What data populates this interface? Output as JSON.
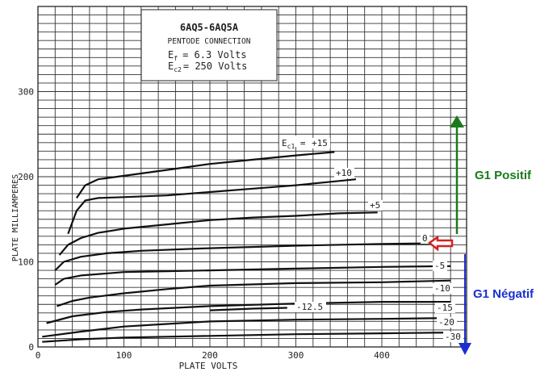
{
  "chart_data": {
    "type": "line",
    "title": {
      "line1": "6AQ5-6AQ5A",
      "line2": "PENTODE CONNECTION",
      "line3_sym": "E",
      "line3_sub": "f",
      "line3_rest": "= 6.3 Volts",
      "line4_sym": "E",
      "line4_sub": "c2",
      "line4_rest": "= 250 Volts"
    },
    "xlabel": "PLATE VOLTS",
    "ylabel": "PLATE MILLIAMPERES",
    "xlim": [
      0,
      480
    ],
    "ylim": [
      0,
      300
    ],
    "x_ticks": [
      "0",
      "100",
      "200",
      "300",
      "400"
    ],
    "y_ticks": [
      "0",
      "100",
      "200",
      "300"
    ],
    "grid": true,
    "series_label_prefix_sym": "E",
    "series_label_prefix_sub": "c1",
    "series": [
      {
        "name": "+15",
        "points": [
          [
            45,
            175
          ],
          [
            55,
            190
          ],
          [
            70,
            197
          ],
          [
            100,
            201
          ],
          [
            150,
            208
          ],
          [
            200,
            215
          ],
          [
            250,
            220
          ],
          [
            300,
            225
          ],
          [
            345,
            229
          ]
        ]
      },
      {
        "name": "+10",
        "points": [
          [
            35,
            133
          ],
          [
            45,
            160
          ],
          [
            55,
            172
          ],
          [
            70,
            175
          ],
          [
            100,
            176
          ],
          [
            150,
            178
          ],
          [
            200,
            182
          ],
          [
            250,
            186
          ],
          [
            300,
            190
          ],
          [
            350,
            195
          ],
          [
            370,
            197
          ]
        ]
      },
      {
        "name": "+5",
        "points": [
          [
            25,
            108
          ],
          [
            35,
            120
          ],
          [
            50,
            128
          ],
          [
            70,
            134
          ],
          [
            100,
            139
          ],
          [
            150,
            144
          ],
          [
            200,
            149
          ],
          [
            250,
            152
          ],
          [
            300,
            154
          ],
          [
            350,
            157
          ],
          [
            395,
            158
          ]
        ]
      },
      {
        "name": "0",
        "points": [
          [
            20,
            90
          ],
          [
            30,
            100
          ],
          [
            50,
            106
          ],
          [
            80,
            110
          ],
          [
            120,
            113
          ],
          [
            200,
            116
          ],
          [
            300,
            119
          ],
          [
            400,
            121
          ],
          [
            480,
            122
          ]
        ]
      },
      {
        "name": "-5",
        "points": [
          [
            20,
            73
          ],
          [
            30,
            80
          ],
          [
            50,
            84
          ],
          [
            100,
            88
          ],
          [
            150,
            89
          ],
          [
            200,
            90
          ],
          [
            300,
            92
          ],
          [
            400,
            94
          ],
          [
            480,
            95
          ]
        ]
      },
      {
        "name": "-10",
        "points": [
          [
            22,
            48
          ],
          [
            40,
            54
          ],
          [
            60,
            58
          ],
          [
            100,
            63
          ],
          [
            150,
            68
          ],
          [
            200,
            72
          ],
          [
            300,
            75
          ],
          [
            400,
            76
          ],
          [
            480,
            78
          ]
        ]
      },
      {
        "name": "-15",
        "points": [
          [
            10,
            28
          ],
          [
            40,
            36
          ],
          [
            80,
            41
          ],
          [
            120,
            44
          ],
          [
            200,
            48
          ],
          [
            300,
            51
          ],
          [
            400,
            53
          ],
          [
            480,
            53
          ]
        ]
      },
      {
        "name": "-12.5",
        "points": [
          [
            200,
            43
          ],
          [
            250,
            45
          ],
          [
            290,
            46
          ]
        ]
      },
      {
        "name": "-20",
        "points": [
          [
            5,
            12
          ],
          [
            50,
            18
          ],
          [
            100,
            24
          ],
          [
            150,
            27
          ],
          [
            200,
            30
          ],
          [
            300,
            32
          ],
          [
            400,
            33
          ],
          [
            480,
            34
          ]
        ]
      },
      {
        "name": "-30",
        "points": [
          [
            5,
            6
          ],
          [
            50,
            9
          ],
          [
            100,
            11
          ],
          [
            150,
            12
          ],
          [
            200,
            13
          ],
          [
            300,
            15
          ],
          [
            400,
            16
          ],
          [
            480,
            17
          ]
        ]
      }
    ],
    "annotations": {
      "positive_label": "G1 Positif",
      "negative_label": "G1 Négatif",
      "positive_color": "#1a7a1a",
      "negative_color": "#1a2fd0",
      "marker_color": "#d42020"
    }
  }
}
